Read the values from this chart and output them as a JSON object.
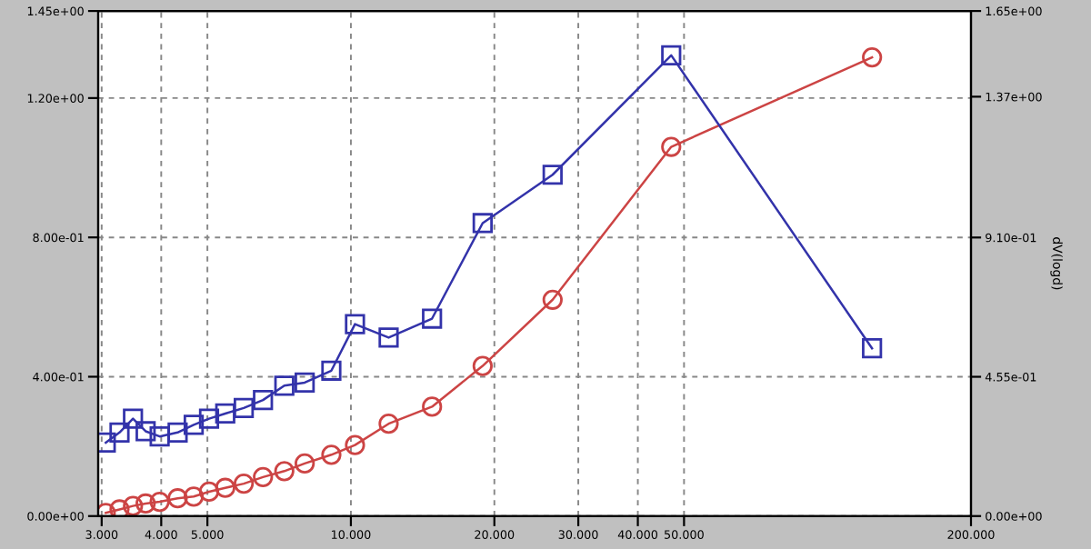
{
  "chart_data": {
    "type": "line",
    "y2label": "dV(logd)",
    "log": "x",
    "xlim": [
      2.95,
      200
    ],
    "ylim": [
      0,
      1.45
    ],
    "y2lim": [
      0,
      1.65
    ],
    "xticks": [
      {
        "value": 3,
        "label": "3.000"
      },
      {
        "value": 4,
        "label": "4.000"
      },
      {
        "value": 5,
        "label": "5.000"
      },
      {
        "value": 10,
        "label": "10.000"
      },
      {
        "value": 20,
        "label": "20.000"
      },
      {
        "value": 30,
        "label": "30.000"
      },
      {
        "value": 40,
        "label": "40.000"
      },
      {
        "value": 50,
        "label": "50.000"
      },
      {
        "value": 200,
        "label": "200.000"
      }
    ],
    "yticks": [
      {
        "value": 0,
        "label": "0.00e+00"
      },
      {
        "value": 0.4,
        "label": "4.00e-01"
      },
      {
        "value": 0.8,
        "label": "8.00e-01"
      },
      {
        "value": 1.2,
        "label": "1.20e+00"
      },
      {
        "value": 1.45,
        "label": "1.45e+00"
      }
    ],
    "y2ticks": [
      {
        "value": 0,
        "label": "0.00e+00"
      },
      {
        "value": 0.455,
        "label": "4.55e-01"
      },
      {
        "value": 0.91,
        "label": "9.10e-01"
      },
      {
        "value": 1.37,
        "label": "1.37e+00"
      },
      {
        "value": 1.65,
        "label": "1.65e+00"
      }
    ],
    "x": [
      3.06,
      3.27,
      3.49,
      3.71,
      3.97,
      4.33,
      4.68,
      5.04,
      5.45,
      5.96,
      6.54,
      7.25,
      8.0,
      9.1,
      10.2,
      12.0,
      14.8,
      18.9,
      26.5,
      47.0,
      124
    ],
    "grid": true,
    "series": [
      {
        "color": "#cc4444",
        "marker": "circle",
        "values": [
          0.009,
          0.019,
          0.029,
          0.036,
          0.041,
          0.051,
          0.056,
          0.07,
          0.081,
          0.093,
          0.112,
          0.129,
          0.151,
          0.176,
          0.204,
          0.265,
          0.314,
          0.431,
          0.621,
          1.06,
          1.317
        ]
      },
      {
        "color": "#3333aa",
        "marker": "square",
        "axis": "y2",
        "values": [
          0.24,
          0.273,
          0.318,
          0.277,
          0.26,
          0.273,
          0.298,
          0.318,
          0.335,
          0.353,
          0.379,
          0.426,
          0.436,
          0.475,
          0.627,
          0.583,
          0.645,
          0.957,
          1.115,
          1.505,
          0.548
        ]
      }
    ]
  }
}
